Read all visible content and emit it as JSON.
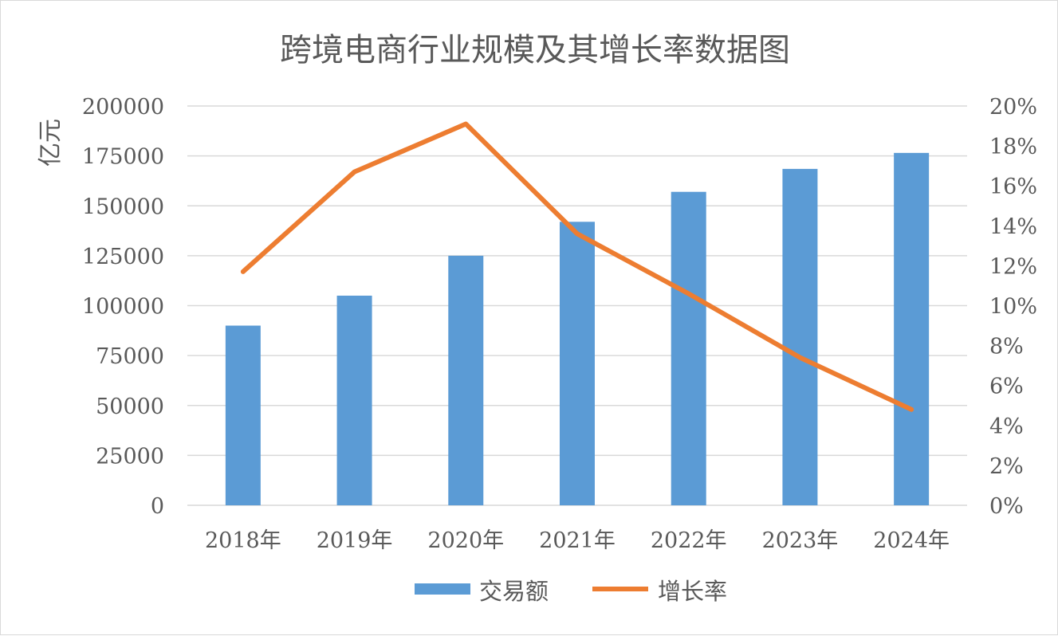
{
  "chart_data": {
    "type": "bar",
    "title": "跨境电商行业规模及其增长率数据图",
    "ylabel": "亿元",
    "categories": [
      "2018年",
      "2019年",
      "2020年",
      "2021年",
      "2022年",
      "2023年",
      "2024年"
    ],
    "y_ticks": [
      "0",
      "25000",
      "50000",
      "75000",
      "100000",
      "125000",
      "150000",
      "175000",
      "200000"
    ],
    "y2_ticks": [
      "0%",
      "2%",
      "4%",
      "6%",
      "8%",
      "10%",
      "12%",
      "14%",
      "16%",
      "18%",
      "20%"
    ],
    "ylim": [
      0,
      200000
    ],
    "y2lim": [
      0,
      20
    ],
    "grid": true,
    "legend_position": "bottom",
    "series": [
      {
        "name": "交易额",
        "type": "bar",
        "axis": "left",
        "color": "#5b9bd5",
        "values": [
          90000,
          105000,
          125000,
          142000,
          157000,
          168500,
          176500
        ]
      },
      {
        "name": "增长率",
        "type": "line",
        "axis": "right",
        "unit": "%",
        "color": "#ed7d31",
        "values": [
          11.7,
          16.7,
          19.1,
          13.6,
          10.6,
          7.4,
          4.8
        ]
      }
    ]
  }
}
